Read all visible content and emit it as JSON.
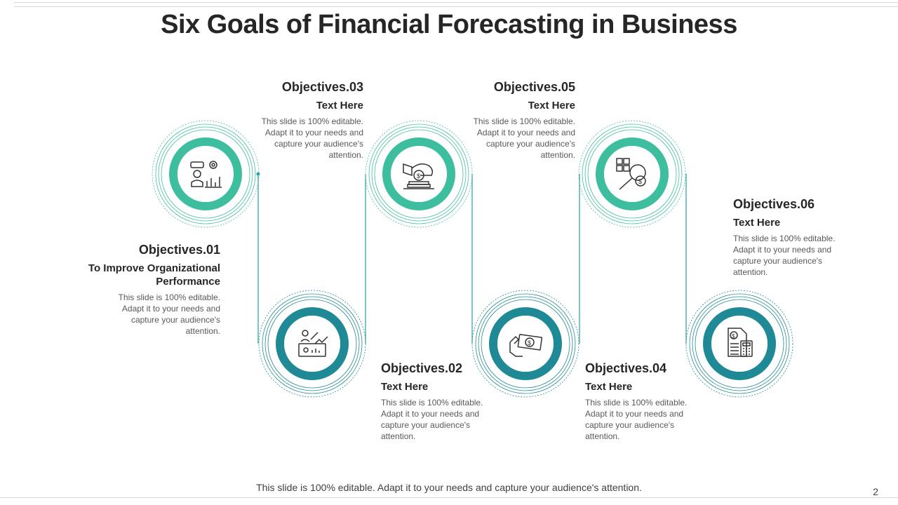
{
  "title": "Six Goals of Financial Forecasting in Business",
  "footer": "This slide is 100% editable. Adapt it to your needs and capture your audience's attention.",
  "page_number": "2",
  "colors": {
    "teal_light": "#3dbf9f",
    "teal_dark": "#1f8a96",
    "line": "#2aa0a0"
  },
  "objectives": [
    {
      "heading": "Objectives.01",
      "subtitle": "To Improve Organizational Performance",
      "body": "This slide is 100% editable. Adapt it to your needs and capture your audience's attention.",
      "icon": "businessman-growth-chart-icon"
    },
    {
      "heading": "Objectives.02",
      "subtitle": "Text Here",
      "body": "This slide is 100% editable. Adapt it to your needs and capture your audience's attention.",
      "icon": "presentation-board-icon"
    },
    {
      "heading": "Objectives.03",
      "subtitle": "Text Here",
      "body": "This slide is 100% editable. Adapt it to your needs and capture your audience's attention.",
      "icon": "coins-investment-icon"
    },
    {
      "heading": "Objectives.04",
      "subtitle": "Text Here",
      "body": "This slide is 100% editable. Adapt it to your needs and capture your audience's attention.",
      "icon": "hand-money-icon"
    },
    {
      "heading": "Objectives.05",
      "subtitle": "Text Here",
      "body": "This slide is 100% editable. Adapt it to your needs and capture your audience's attention.",
      "icon": "calculator-magnifier-icon"
    },
    {
      "heading": "Objectives.06",
      "subtitle": "Text Here",
      "body": "This slide is 100% editable. Adapt it to your needs and capture your audience's attention.",
      "icon": "invoice-calculator-icon"
    }
  ]
}
